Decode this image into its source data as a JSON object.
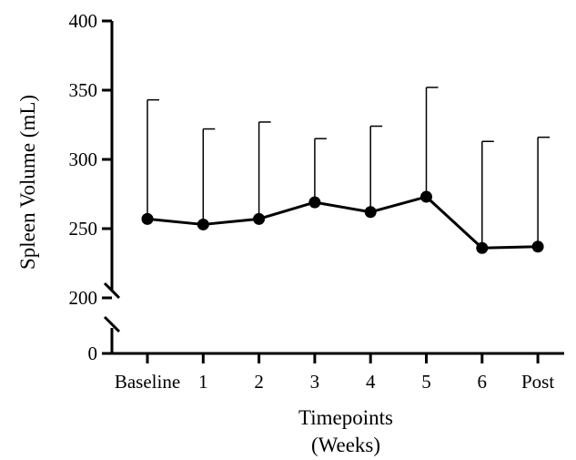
{
  "chart_data": {
    "type": "line",
    "xlabel": [
      "Timepoints",
      "(Weeks)"
    ],
    "ylabel": "Spleen Volume (mL)",
    "categories": [
      "Baseline",
      "1",
      "2",
      "3",
      "4",
      "5",
      "6",
      "Post"
    ],
    "y_axis": {
      "broken": true,
      "lower_segment": [
        0,
        0
      ],
      "upper_segment": [
        200,
        400
      ],
      "ticks": [
        0,
        200,
        250,
        300,
        350,
        400
      ]
    },
    "series": [
      {
        "values": [
          257,
          253,
          257,
          269,
          262,
          273,
          236,
          237
        ],
        "error_upper": [
          343,
          322,
          327,
          315,
          324,
          352,
          313,
          316
        ]
      }
    ],
    "grid": false,
    "colors": {
      "line": "#000000",
      "marker": "#000000"
    }
  }
}
